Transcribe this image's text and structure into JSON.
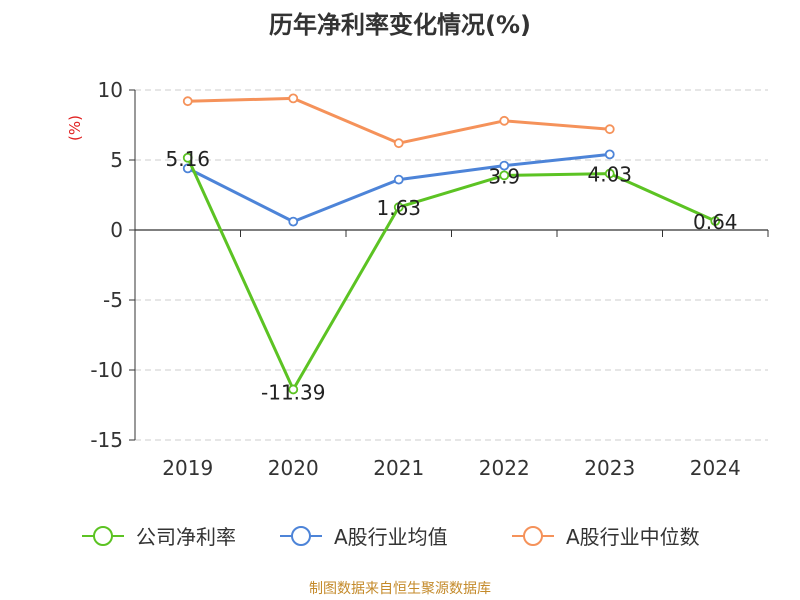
{
  "chart_data": {
    "type": "line",
    "title": "历年净利率变化情况(%)",
    "ylabel": "(%)",
    "categories": [
      "2019",
      "2020",
      "2021",
      "2022",
      "2023",
      "2024"
    ],
    "ylim": [
      -15,
      10
    ],
    "yticks": [
      10,
      5,
      0,
      -5,
      -10,
      -15
    ],
    "grid": true,
    "legend_position": "bottom",
    "series": [
      {
        "name": "公司净利率",
        "color": "#5cc323",
        "values": [
          5.16,
          -11.39,
          1.63,
          3.9,
          4.03,
          0.64
        ],
        "labels": [
          "5.16",
          "-11.39",
          "1.63",
          "3.9",
          "4.03",
          "0.64"
        ]
      },
      {
        "name": "A股行业均值",
        "color": "#4d84d8",
        "values": [
          4.4,
          0.6,
          3.6,
          4.6,
          5.4,
          null
        ]
      },
      {
        "name": "A股行业中位数",
        "color": "#f5925a",
        "values": [
          9.2,
          9.4,
          6.2,
          7.8,
          7.2,
          null
        ]
      }
    ]
  },
  "source_note": "制图数据来自恒生聚源数据库"
}
